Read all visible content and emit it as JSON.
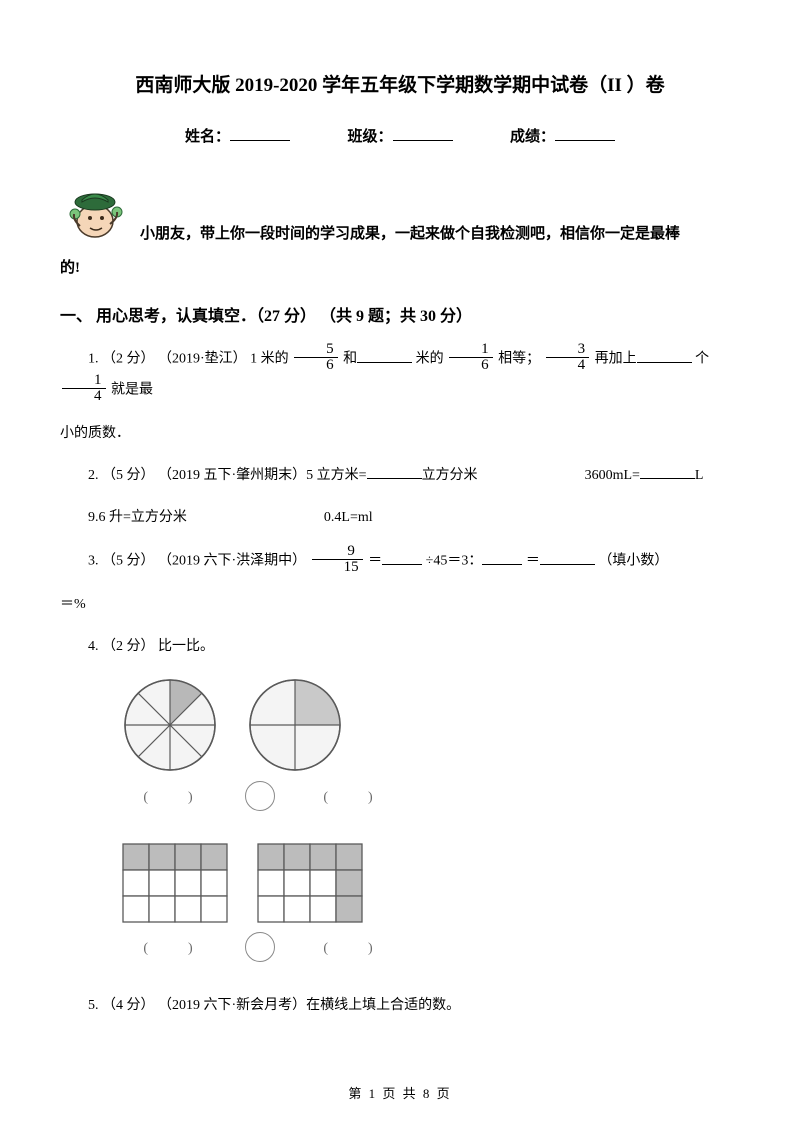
{
  "title": "西南师大版 2019-2020 学年五年级下学期数学期中试卷（II ）卷",
  "info": {
    "name_label": "姓名：",
    "class_label": "班级：",
    "score_label": "成绩："
  },
  "intro": {
    "line1": "小朋友，带上你一段时间的学习成果，一起来做个自我检测吧，相信你一定是最棒",
    "line2": "的!"
  },
  "section1": "一、 用心思考，认真填空．（27 分）  （共 9 题；共 30 分）",
  "q1": {
    "prefix": "1.  （2 分） （2019·垫江） 1 米的",
    "f1n": "5",
    "f1d": "6",
    "mid1": "和",
    "mid2": "米的",
    "f2n": "1",
    "f2d": "6",
    "mid3": "相等；",
    "f3n": "3",
    "f3d": "4",
    "mid4": "再加上",
    "mid5": "个",
    "f4n": "1",
    "f4d": "4",
    "tail": "就是最",
    "tail2": "小的质数．"
  },
  "q2": {
    "l1a": "2.  （5 分） （2019 五下·肇州期末）5 立方米=",
    "l1b": "立方分米",
    "l1c": "3600mL=",
    "l1d": "L",
    "l2a": "9.6 升=",
    "l2b": "立方分米",
    "l2c": "0.4L=",
    "l2d": "ml"
  },
  "q3": {
    "prefix": "3.  （5 分） （2019 六下·洪泽期中）",
    "fn": "9",
    "fd": "15",
    "mid1": " ＝",
    "mid2": "÷45＝3：",
    "mid3": "＝",
    "tail1": "（填小数）",
    "tail2": "＝",
    "tail3": "%"
  },
  "q4": {
    "text": "4.  （2 分） 比一比。"
  },
  "q5": {
    "text": "5.  （4 分） （2019 六下·新会月考）在横线上填上合适的数。"
  },
  "footer": "第 1 页 共 8 页",
  "figures": {
    "circle1": {
      "slices": 8,
      "shaded_index": 0,
      "stroke": "#5a5a5a",
      "fill": "#b8b8b8",
      "bg": "#f4f4f4"
    },
    "circle2": {
      "slices": 4,
      "shaded_index": 0,
      "stroke": "#5a5a5a",
      "fill": "#c9c9c9",
      "bg": "#f4f4f4"
    },
    "grid1": {
      "rows": 3,
      "cols": 4,
      "shaded": [
        [
          0,
          0
        ],
        [
          0,
          1
        ],
        [
          0,
          2
        ],
        [
          0,
          3
        ]
      ],
      "stroke": "#5a5a5a",
      "fill": "#bcbcbc"
    },
    "grid2": {
      "rows": 3,
      "cols": 4,
      "shaded": [
        [
          0,
          0
        ],
        [
          0,
          1
        ],
        [
          0,
          2
        ],
        [
          0,
          3
        ],
        [
          1,
          3
        ],
        [
          2,
          3
        ]
      ],
      "stroke": "#5a5a5a",
      "fill": "#bcbcbc"
    }
  }
}
